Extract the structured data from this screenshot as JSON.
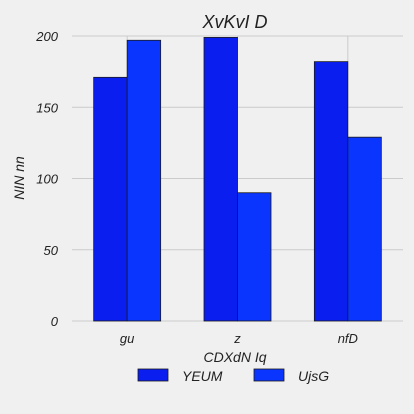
{
  "chart_data": {
    "type": "bar",
    "title": "XvKvI D",
    "xlabel": "CDXdN Iq",
    "ylabel": "NIN nn",
    "categories": [
      "gu",
      "z",
      "nfD"
    ],
    "series": [
      {
        "name": "YEUM",
        "values": [
          171,
          199,
          182
        ],
        "color": "#0a1ef0"
      },
      {
        "name": "UjsG",
        "values": [
          197,
          90,
          129
        ],
        "color": "#0a35ff"
      }
    ],
    "ylim": [
      0,
      200
    ],
    "yticks": [
      0,
      50,
      100,
      150,
      200
    ],
    "grid": true,
    "legend": "bottom-center"
  }
}
